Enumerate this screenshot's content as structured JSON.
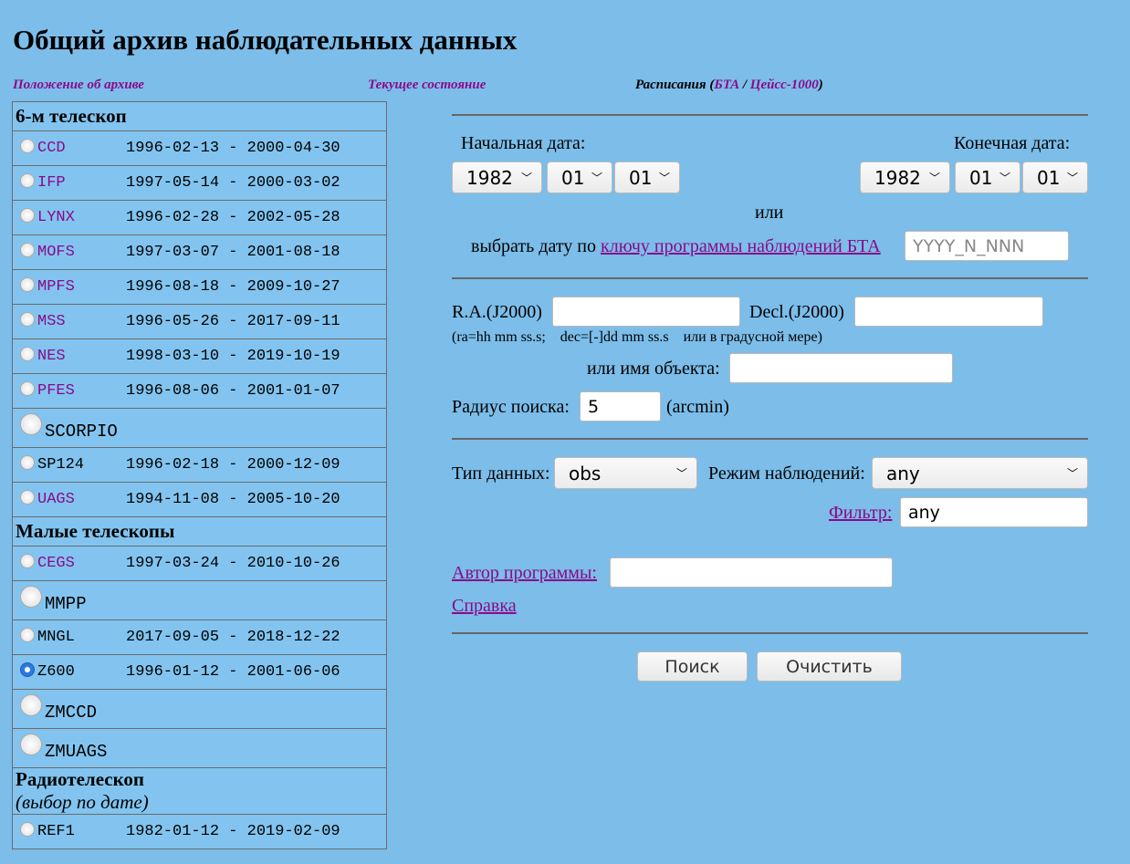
{
  "title": "Общий архив наблюдательных данных",
  "links": {
    "about": "Положение об архиве",
    "status": "Текущее состояние",
    "schedules": "Расписания (",
    "bta": "БТА",
    "sep": " / ",
    "zeiss": "Цейсс-1000",
    "close": ")"
  },
  "sections": [
    {
      "title": "6-м телескоп",
      "rows": [
        {
          "name": "CCD",
          "dates": "1996-02-13 - 2000-04-30",
          "link": true
        },
        {
          "name": "IFP",
          "dates": "1997-05-14 - 2000-03-02",
          "link": true
        },
        {
          "name": "LYNX",
          "dates": "1996-02-28 - 2002-05-28",
          "link": true
        },
        {
          "name": "MOFS",
          "dates": "1997-03-07 - 2001-08-18",
          "link": true
        },
        {
          "name": "MPFS",
          "dates": "1996-08-18 - 2009-10-27",
          "link": true
        },
        {
          "name": "MSS",
          "dates": "1996-05-26 - 2017-09-11",
          "link": true
        },
        {
          "name": "NES",
          "dates": "1998-03-10 - 2019-10-19",
          "link": true
        },
        {
          "name": "PFES",
          "dates": "1996-08-06 - 2001-01-07",
          "link": true
        },
        {
          "name": "SCORPIO",
          "dates": "",
          "link": false
        },
        {
          "name": "SP124",
          "dates": "1996-02-18 - 2000-12-09",
          "link": false
        },
        {
          "name": "UAGS",
          "dates": "1994-11-08 - 2005-10-20",
          "link": true
        }
      ]
    },
    {
      "title": "Малые телескопы",
      "rows": [
        {
          "name": "CEGS",
          "dates": "1997-03-24 - 2010-10-26",
          "link": true
        },
        {
          "name": "MMPP",
          "dates": "",
          "link": false
        },
        {
          "name": "MNGL",
          "dates": "2017-09-05 - 2018-12-22",
          "link": false
        },
        {
          "name": "Z600",
          "dates": "1996-01-12 - 2001-06-06",
          "link": false,
          "checked": true
        },
        {
          "name": "ZMCCD",
          "dates": "",
          "link": false
        },
        {
          "name": "ZMUAGS",
          "dates": "",
          "link": false
        }
      ]
    },
    {
      "title": "Радиотелескоп",
      "subtitle": "(выбор по дате)",
      "rows": [
        {
          "name": "REF1",
          "dates": "1982-01-12 - 2019-02-09",
          "link": false
        }
      ]
    }
  ],
  "form": {
    "start_label": "Начальная дата:",
    "end_label": "Конечная дата:",
    "start": {
      "year": "1982",
      "month": "01",
      "day": "01"
    },
    "end": {
      "year": "1982",
      "month": "01",
      "day": "01"
    },
    "or": "или",
    "by_key": "выбрать дату по",
    "key_link": "ключу программы наблюдений БТА",
    "key_placeholder": "YYYY_N_NNN",
    "ra_label": "R.A.(J2000)",
    "dec_label": "Decl.(J2000)",
    "ra": "",
    "dec": "",
    "coord_hint": "(ra=hh mm ss.s;    dec=[-]dd mm ss.s    или в градусной мере)",
    "obj_label": "или имя объекта:",
    "obj": "",
    "radius_label": "Радиус поиска:",
    "radius": "5",
    "radius_unit": "(arcmin)",
    "type_label": "Тип данных:",
    "type": "obs",
    "mode_label": "Режим наблюдений:",
    "mode": "any",
    "filter_link": "Фильтр:",
    "filter": "any",
    "author_link": "Автор программы:",
    "author": "",
    "help": "Справка",
    "search": "Поиск",
    "clear": "Очистить"
  }
}
